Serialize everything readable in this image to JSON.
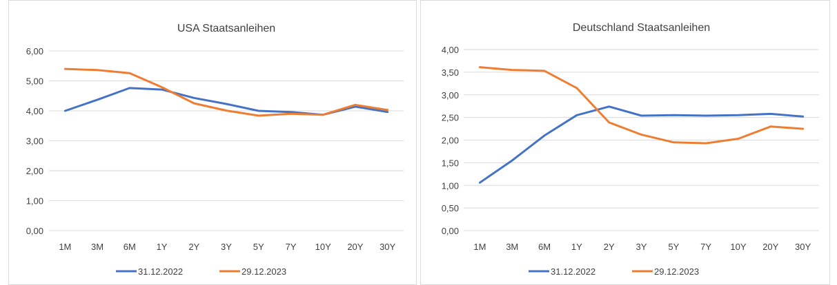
{
  "charts": [
    {
      "title": "USA Staatsanleihen",
      "chart_ref": 0
    },
    {
      "title": "Deutschland Staatsanleihen",
      "chart_ref": 1
    }
  ],
  "chart_data": [
    {
      "type": "line",
      "title": "USA Staatsanleihen",
      "xlabel": "",
      "ylabel": "",
      "categories": [
        "1M",
        "3M",
        "6M",
        "1Y",
        "2Y",
        "3Y",
        "5Y",
        "7Y",
        "10Y",
        "20Y",
        "30Y"
      ],
      "ylim": [
        0,
        6
      ],
      "yticks": [
        "0,00",
        "1,00",
        "2,00",
        "3,00",
        "4,00",
        "5,00",
        "6,00"
      ],
      "grid": true,
      "legend": "bottom",
      "series": [
        {
          "name": "31.12.2022",
          "color": "#4472C4",
          "values": [
            4.0,
            4.37,
            4.76,
            4.71,
            4.43,
            4.23,
            4.0,
            3.96,
            3.87,
            4.14,
            3.96
          ]
        },
        {
          "name": "29.12.2023",
          "color": "#ED7D31",
          "values": [
            5.4,
            5.36,
            5.26,
            4.79,
            4.25,
            4.01,
            3.84,
            3.9,
            3.87,
            4.2,
            4.03
          ]
        }
      ]
    },
    {
      "type": "line",
      "title": "Deutschland Staatsanleihen",
      "xlabel": "",
      "ylabel": "",
      "categories": [
        "1M",
        "3M",
        "6M",
        "1Y",
        "2Y",
        "3Y",
        "5Y",
        "7Y",
        "10Y",
        "20Y",
        "30Y"
      ],
      "ylim": [
        0,
        4
      ],
      "yticks": [
        "0,00",
        "0,50",
        "1,00",
        "1,50",
        "2,00",
        "2,50",
        "3,00",
        "3,50",
        "4,00"
      ],
      "grid": true,
      "legend": "bottom",
      "series": [
        {
          "name": "31.12.2022",
          "color": "#4472C4",
          "values": [
            1.06,
            1.55,
            2.1,
            2.55,
            2.74,
            2.54,
            2.55,
            2.54,
            2.55,
            2.58,
            2.52
          ]
        },
        {
          "name": "29.12.2023",
          "color": "#ED7D31",
          "values": [
            3.61,
            3.55,
            3.53,
            3.15,
            2.39,
            2.12,
            1.95,
            1.93,
            2.03,
            2.3,
            2.25
          ]
        }
      ]
    }
  ]
}
